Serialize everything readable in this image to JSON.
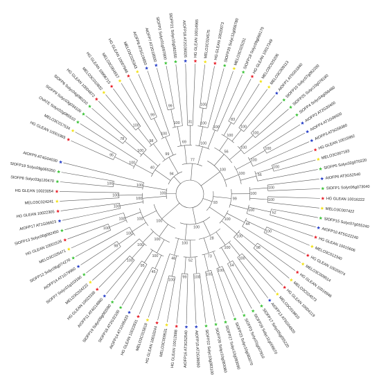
{
  "tree": {
    "colors": {
      "red": "#e8202a",
      "green": "#3ec43a",
      "yellow": "#f2e21b",
      "blue": "#2840c8",
      "branch": "#555555"
    },
    "leaves": [
      {
        "name": "HG GLEAN 10001965",
        "marker": "red"
      },
      {
        "name": "MELO3C017534",
        "marker": "yellow"
      },
      {
        "name": "OVATE Solyc02g085510",
        "marker": "green"
      },
      {
        "name": "SlOFP9 Solyc03g034100",
        "marker": "green"
      },
      {
        "name": "SlOFP6 Solyc04g080210",
        "marker": "green"
      },
      {
        "name": "HG GLEAN 10004872",
        "marker": "red"
      },
      {
        "name": "MELO3C010932",
        "marker": "yellow"
      },
      {
        "name": "HG GLEAN 10006715",
        "marker": "red"
      },
      {
        "name": "MELO3C004557",
        "marker": "yellow"
      },
      {
        "name": "HG GLEAN 10007946",
        "marker": "red"
      },
      {
        "name": "MELO3C025343",
        "marker": "yellow"
      },
      {
        "name": "AtOFP8 AT5G19650",
        "marker": "blue"
      },
      {
        "name": "AtOFP7 AT2G18500",
        "marker": "blue"
      },
      {
        "name": "SlOFP2 Solyc01g097800",
        "marker": "green"
      },
      {
        "name": "SlOFP21 Solyc10g082050",
        "marker": "green"
      },
      {
        "name": "AtOFP18 AT2G36026",
        "marker": "blue"
      },
      {
        "name": "HG GLEAN 10014965",
        "marker": "red"
      },
      {
        "name": "MELO3C024575",
        "marker": "yellow"
      },
      {
        "name": "HG GLEAN 10020073",
        "marker": "red"
      },
      {
        "name": "SlOFP20 Solyc11g006780",
        "marker": "green"
      },
      {
        "name": "MELO3C025251",
        "marker": "yellow"
      },
      {
        "name": "SlOFP18 Solyc09g066170",
        "marker": "green"
      },
      {
        "name": "HG GLEAN 10017349",
        "marker": "red"
      },
      {
        "name": "MELO3C025206",
        "marker": "yellow"
      },
      {
        "name": "MELO3C009113",
        "marker": "yellow"
      },
      {
        "name": "AtOFP1 AT5G01840",
        "marker": "blue"
      },
      {
        "name": "SlOFP10 Solyc07g062200",
        "marker": "green"
      },
      {
        "name": "SlOFP25 Solyc10g078180",
        "marker": "green"
      },
      {
        "name": "SlOFP4 Solyc04g056460",
        "marker": "green"
      },
      {
        "name": "AtOFP2 AT2G30400",
        "marker": "blue"
      },
      {
        "name": "AtOFP4 AT1G06920",
        "marker": "blue"
      },
      {
        "name": "AtOFP3 AT5G58360",
        "marker": "blue"
      },
      {
        "name": "HG GLEAN 10015992",
        "marker": "red"
      },
      {
        "name": "MELO3C007183",
        "marker": "yellow"
      },
      {
        "name": "SlOFP5 Solyc02g070220",
        "marker": "green"
      },
      {
        "name": "AtOFP6 AT3G52540",
        "marker": "blue"
      },
      {
        "name": "SlOFP1 Solyc06g073040",
        "marker": "green"
      },
      {
        "name": "HG GLEAN 10016222",
        "marker": "red"
      },
      {
        "name": "MELO3C007422",
        "marker": "yellow"
      },
      {
        "name": "SlOFP15 Solyc07g055240",
        "marker": "green"
      },
      {
        "name": "AtOFP10 AT5G22240",
        "marker": "blue"
      },
      {
        "name": "HG GLEAN 10015606",
        "marker": "red"
      },
      {
        "name": "MELO3C012340",
        "marker": "yellow"
      },
      {
        "name": "HG GLEAN 10020074",
        "marker": "red"
      },
      {
        "name": "MELO3C009514",
        "marker": "yellow"
      },
      {
        "name": "HG GLEAN 10016946",
        "marker": "red"
      },
      {
        "name": "MELO3C024573",
        "marker": "yellow"
      },
      {
        "name": "HG GLEAN 10004119",
        "marker": "red"
      },
      {
        "name": "MELO3C019910",
        "marker": "yellow"
      },
      {
        "name": "AtOFP13 AT5G04820",
        "marker": "blue"
      },
      {
        "name": "SlOFP17 Solyc05g055220",
        "marker": "green"
      },
      {
        "name": "SlOFP29 Solyc11g006670",
        "marker": "green"
      },
      {
        "name": "SlOFP3 Solyc01g007810",
        "marker": "green"
      },
      {
        "name": "SlOFP23 Solyc10g083070",
        "marker": "green"
      },
      {
        "name": "SlOFP27 Solyc10g083090",
        "marker": "green"
      },
      {
        "name": "SlOFP26 Solyc10g083080",
        "marker": "green"
      },
      {
        "name": "SlOFP22 Solyc10g083100",
        "marker": "green"
      },
      {
        "name": "AtOFP15 AT2G36050",
        "marker": "blue"
      },
      {
        "name": "AtOFP16 AT3G52540",
        "marker": "blue"
      },
      {
        "name": "HG GLEAN 10012688",
        "marker": "red"
      },
      {
        "name": "MELO3C009531",
        "marker": "yellow"
      },
      {
        "name": "HG GLEAN 10010244",
        "marker": "red"
      },
      {
        "name": "MELO3C015818",
        "marker": "yellow"
      },
      {
        "name": "HG GLEAN 10022831",
        "marker": "red"
      },
      {
        "name": "AtOFP14 AT1G05420",
        "marker": "blue"
      },
      {
        "name": "SlOFP16 AT2G32100",
        "marker": "green"
      },
      {
        "name": "SlOFP19 Solyc09g082080",
        "marker": "green"
      },
      {
        "name": "AtOFP11 AT4G14860",
        "marker": "blue"
      },
      {
        "name": "HG GLEAN 10023338",
        "marker": "red"
      },
      {
        "name": "MELO3C024222",
        "marker": "yellow"
      },
      {
        "name": "SlOFP7 Solyc01g103160",
        "marker": "green"
      },
      {
        "name": "AtOFP14 AT1G79960",
        "marker": "blue"
      },
      {
        "name": "SlOFP12 Solyc06g074270",
        "marker": "green"
      },
      {
        "name": "MELO3C025471",
        "marker": "yellow"
      },
      {
        "name": "HG GLEAN 10001526",
        "marker": "red"
      },
      {
        "name": "SlOFP13 Solyc06g082450",
        "marker": "green"
      },
      {
        "name": "AtOFP17 AT1G06923",
        "marker": "blue"
      },
      {
        "name": "HG GLEAN 10022305",
        "marker": "red"
      },
      {
        "name": "MELO3C024241",
        "marker": "yellow"
      },
      {
        "name": "HG GLEAN 10023054",
        "marker": "red"
      },
      {
        "name": "SlOFP8 Solyc03g120470",
        "marker": "green"
      },
      {
        "name": "SlOFP19 Solyc09g065350",
        "marker": "green"
      },
      {
        "name": "AtOFP9 AT4G04030",
        "marker": "blue"
      }
    ],
    "bootstrap_values": [
      "94",
      "40",
      "100",
      "95",
      "100",
      "78",
      "99",
      "98",
      "100",
      "100",
      "99",
      "77",
      "69",
      "100",
      "99",
      "31",
      "100",
      "100",
      "100",
      "100",
      "100",
      "56",
      "100",
      "83",
      "100",
      "100",
      "100",
      "100",
      "100",
      "100",
      "56",
      "100",
      "93",
      "99",
      "100",
      "100",
      "100",
      "100",
      "52",
      "100",
      "44",
      "100",
      "100",
      "98",
      "100",
      "28",
      "100",
      "100",
      "54",
      "73",
      "100",
      "100",
      "100",
      "52",
      "100",
      "99",
      "48",
      "100",
      "100",
      "100",
      "100",
      "45",
      "95",
      "100",
      "100",
      "100",
      "100",
      "98",
      "100",
      "100",
      "100",
      "100",
      "100",
      "100",
      "100",
      "100",
      "100",
      "100",
      "100",
      "100",
      "82",
      "100",
      "100",
      "100",
      "100",
      "96"
    ]
  }
}
